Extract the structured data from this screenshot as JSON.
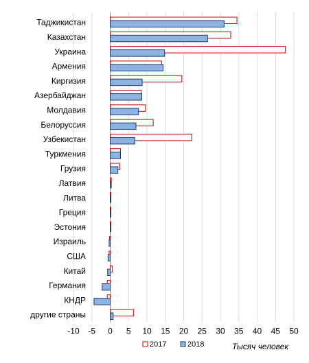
{
  "chart_data": {
    "type": "bar",
    "orientation": "horizontal",
    "categories": [
      "Таджикистан",
      "Казахстан",
      "Украина",
      "Армения",
      "Киргизия",
      "Азербайджан",
      "Молдавия",
      "Белоруссия",
      "Узбекистан",
      "Туркмения",
      "Грузия",
      "Латвия",
      "Литва",
      "Греция",
      "Эстония",
      "Израиль",
      "США",
      "Китай",
      "Германия",
      "КНДР",
      "другие страны"
    ],
    "series": [
      {
        "name": "2017",
        "color": "#c00000",
        "fill": "#ffffff",
        "values": [
          34.5,
          32.8,
          47.7,
          14.0,
          19.5,
          8.4,
          9.6,
          11.7,
          22.2,
          2.8,
          2.6,
          0.3,
          0.2,
          0.1,
          0.1,
          -0.2,
          -0.3,
          0.6,
          -0.8,
          -0.8,
          6.4
        ]
      },
      {
        "name": "2018",
        "color": "#1f3864",
        "fill": "#8db3e2",
        "values": [
          31.0,
          26.5,
          14.8,
          14.4,
          8.7,
          8.6,
          7.7,
          7.0,
          6.7,
          2.8,
          2.1,
          0.3,
          0.1,
          0.1,
          0.1,
          -0.3,
          -0.6,
          -0.7,
          -2.2,
          -4.4,
          0.8
        ]
      }
    ],
    "xlim": [
      -10,
      50
    ],
    "xticks": [
      -10,
      -5,
      0,
      5,
      10,
      15,
      20,
      25,
      30,
      35,
      40,
      45,
      50
    ],
    "xlabel": "Тысяч человек",
    "grid": true,
    "legend": "bottom"
  }
}
